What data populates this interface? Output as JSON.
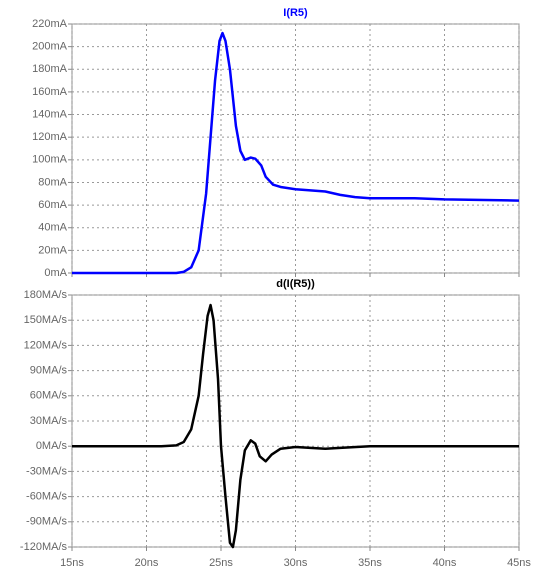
{
  "chart_data": [
    {
      "type": "line",
      "series": [
        {
          "name": "I(R5)",
          "color": "#0000ff",
          "values": [
            0,
            0,
            0,
            0,
            1,
            5,
            20,
            70,
            120,
            170,
            205,
            212,
            205,
            180,
            130,
            108,
            100,
            102,
            101,
            95,
            85,
            78,
            76,
            74,
            73,
            72,
            69,
            67,
            66,
            66,
            65,
            64
          ]
        }
      ],
      "x": [
        15,
        20,
        21,
        22,
        22.5,
        23,
        23.5,
        24,
        24.3,
        24.6,
        24.9,
        25.1,
        25.3,
        25.6,
        26,
        26.3,
        26.6,
        27,
        27.3,
        27.7,
        28,
        28.5,
        29,
        30,
        31,
        32,
        33,
        34,
        35,
        38,
        40,
        45
      ],
      "xlim": [
        15,
        45
      ],
      "ylim": [
        0,
        220
      ],
      "yticks": [
        {
          "value": 0,
          "label": "0mA"
        },
        {
          "value": 20,
          "label": "20mA"
        },
        {
          "value": 40,
          "label": "40mA"
        },
        {
          "value": 60,
          "label": "60mA"
        },
        {
          "value": 80,
          "label": "80mA"
        },
        {
          "value": 100,
          "label": "100mA"
        },
        {
          "value": 120,
          "label": "120mA"
        },
        {
          "value": 140,
          "label": "140mA"
        },
        {
          "value": 160,
          "label": "160mA"
        },
        {
          "value": 180,
          "label": "180mA"
        },
        {
          "value": 200,
          "label": "200mA"
        },
        {
          "value": 220,
          "label": "220mA"
        }
      ],
      "grid": true
    },
    {
      "type": "line",
      "series": [
        {
          "name": "d(I(R5))",
          "color": "#000000",
          "values": [
            0,
            0,
            1,
            5,
            20,
            60,
            110,
            155,
            168,
            150,
            80,
            0,
            -60,
            -115,
            -120,
            -100,
            -40,
            -5,
            7,
            3,
            -12,
            -18,
            -10,
            -3,
            -1,
            -3,
            -2,
            0,
            0
          ]
        }
      ],
      "x": [
        15,
        21,
        22,
        22.5,
        23,
        23.5,
        23.8,
        24.1,
        24.3,
        24.5,
        24.8,
        25,
        25.3,
        25.6,
        25.8,
        26,
        26.3,
        26.6,
        27,
        27.3,
        27.6,
        28,
        28.4,
        29,
        30,
        32,
        33,
        35,
        45
      ],
      "xlim": [
        15,
        45
      ],
      "xticks": [
        {
          "value": 15,
          "label": "15ns"
        },
        {
          "value": 20,
          "label": "20ns"
        },
        {
          "value": 25,
          "label": "25ns"
        },
        {
          "value": 30,
          "label": "30ns"
        },
        {
          "value": 35,
          "label": "35ns"
        },
        {
          "value": 40,
          "label": "40ns"
        },
        {
          "value": 45,
          "label": "45ns"
        }
      ],
      "ylim": [
        -120,
        180
      ],
      "yticks": [
        {
          "value": -120,
          "label": "-120MA/s"
        },
        {
          "value": -90,
          "label": "-90MA/s"
        },
        {
          "value": -60,
          "label": "-60MA/s"
        },
        {
          "value": -30,
          "label": "-30MA/s"
        },
        {
          "value": 0,
          "label": "0MA/s"
        },
        {
          "value": 30,
          "label": "30MA/s"
        },
        {
          "value": 60,
          "label": "60MA/s"
        },
        {
          "value": 90,
          "label": "90MA/s"
        },
        {
          "value": 120,
          "label": "120MA/s"
        },
        {
          "value": 150,
          "label": "150MA/s"
        },
        {
          "value": 180,
          "label": "180MA/s"
        }
      ],
      "grid": true
    }
  ]
}
